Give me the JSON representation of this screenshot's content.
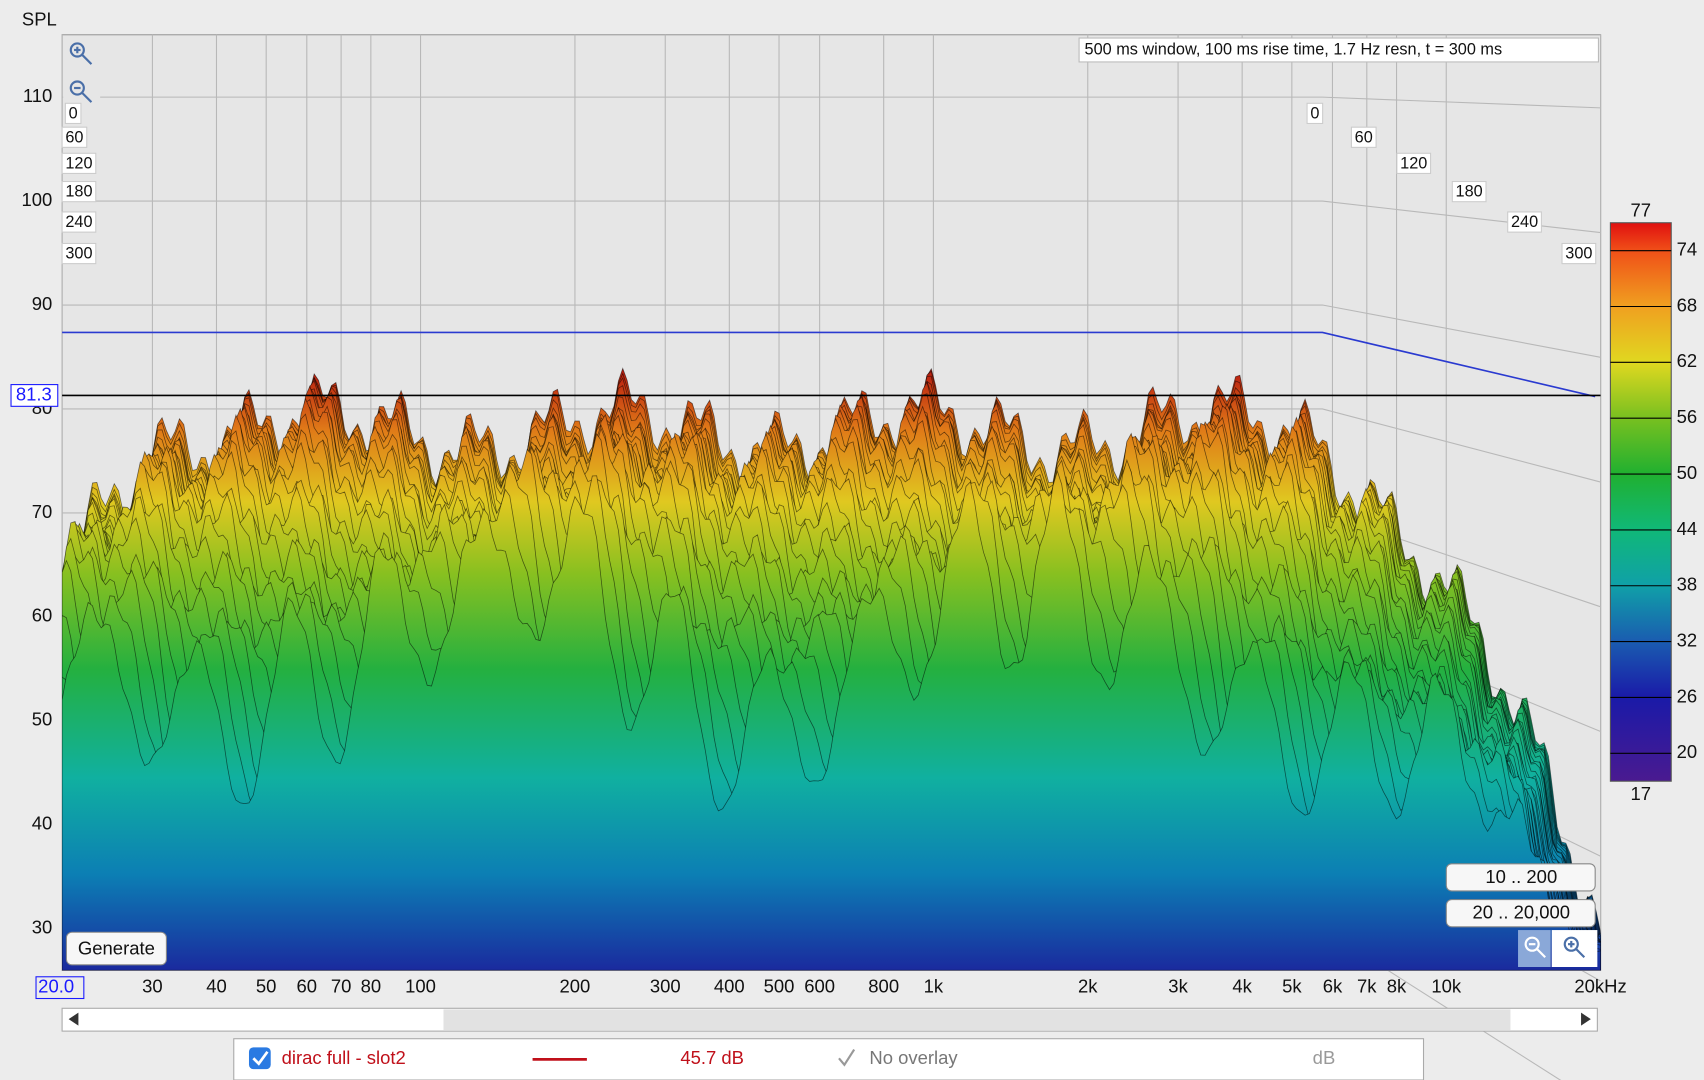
{
  "y_axis": {
    "title": "SPL",
    "lim": [
      26,
      116
    ],
    "ticks": [
      30,
      40,
      50,
      60,
      70,
      80,
      90,
      100,
      110
    ]
  },
  "x_axis": {
    "lim": [
      20,
      20000
    ],
    "ticks": [
      {
        "value": 20,
        "label": "20.0"
      },
      30,
      40,
      50,
      60,
      70,
      80,
      100,
      200,
      300,
      400,
      500,
      600,
      800,
      {
        "value": 1000,
        "label": "1k"
      },
      {
        "value": 2000,
        "label": "2k"
      },
      {
        "value": 3000,
        "label": "3k"
      },
      {
        "value": 4000,
        "label": "4k"
      },
      {
        "value": 5000,
        "label": "5k"
      },
      {
        "value": 6000,
        "label": "6k"
      },
      {
        "value": 7000,
        "label": "7k"
      },
      {
        "value": 8000,
        "label": "8k"
      },
      {
        "value": 10000,
        "label": "10k"
      },
      {
        "value": 20000,
        "label": "20kHz"
      }
    ]
  },
  "cursor": 81.3,
  "annotation": "500 ms window, 100 ms rise time,  1.7 Hz resn, t = 300 ms",
  "time_labels": [
    0,
    60,
    120,
    180,
    240,
    300
  ],
  "color_scale": {
    "lim": [
      17,
      77
    ],
    "ticks": [
      20,
      26,
      32,
      38,
      44,
      50,
      56,
      62,
      68,
      74
    ]
  },
  "buttons": {
    "generate": "Generate",
    "range_low": "10 .. 200",
    "range_full": "20 .. 20,000"
  },
  "legend": {
    "name": "dirac full - slot2",
    "level": "45.7 dB",
    "overlay": "No overlay",
    "unit": "dB"
  }
}
